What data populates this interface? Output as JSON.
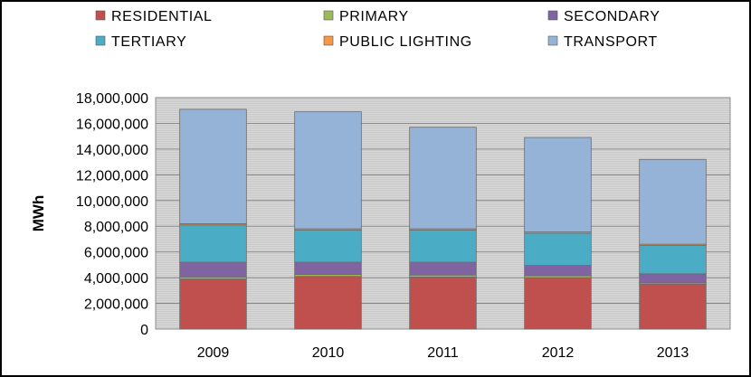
{
  "chart_data": {
    "type": "bar",
    "stacked": true,
    "categories": [
      "2009",
      "2010",
      "2011",
      "2012",
      "2013"
    ],
    "ylabel": "MWh",
    "ylim": [
      0,
      18000000
    ],
    "yticks": [
      0,
      2000000,
      4000000,
      6000000,
      8000000,
      10000000,
      12000000,
      14000000,
      16000000,
      18000000
    ],
    "ytick_labels": [
      "0",
      "2,000,000",
      "4,000,000",
      "6,000,000",
      "8,000,000",
      "10,000,000",
      "12,000,000",
      "14,000,000",
      "16,000,000",
      "18,000,000"
    ],
    "grid": true,
    "legend_position": "top",
    "series": [
      {
        "name": "RESIDENTIAL",
        "color": "#c0504d",
        "values": [
          3900000,
          4100000,
          4050000,
          4000000,
          3500000
        ]
      },
      {
        "name": "PRIMARY",
        "color": "#9bbb59",
        "values": [
          150000,
          150000,
          150000,
          150000,
          100000
        ]
      },
      {
        "name": "SECONDARY",
        "color": "#8064a2",
        "values": [
          1150000,
          950000,
          1000000,
          800000,
          700000
        ]
      },
      {
        "name": "TERTIARY",
        "color": "#4bacc6",
        "values": [
          2900000,
          2500000,
          2500000,
          2500000,
          2200000
        ]
      },
      {
        "name": "PUBLIC LIGHTING",
        "color": "#f79646",
        "values": [
          100000,
          100000,
          100000,
          100000,
          100000
        ]
      },
      {
        "name": "TRANSPORT",
        "color": "#95b3d7",
        "values": [
          8900000,
          9100000,
          7900000,
          7350000,
          6600000
        ]
      }
    ]
  }
}
